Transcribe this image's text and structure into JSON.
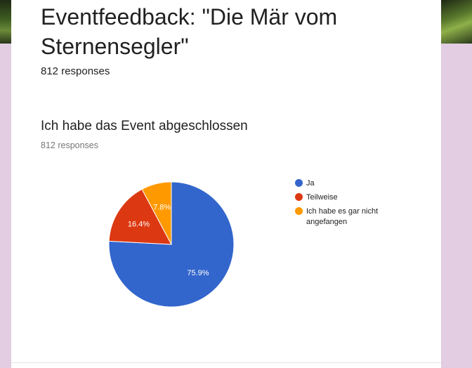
{
  "form": {
    "title": "Eventfeedback: \"Die Mär vom Sternensegler\"",
    "responses": "812 responses"
  },
  "question": {
    "title": "Ich habe das Event abgeschlossen",
    "responses": "812 responses"
  },
  "chart_data": {
    "type": "pie",
    "title": "Ich habe das Event abgeschlossen",
    "categories": [
      "Ja",
      "Teilweise",
      "Ich habe es gar nicht angefangen"
    ],
    "values": [
      75.9,
      16.4,
      7.8
    ],
    "labels": [
      "75.9%",
      "16.4%",
      "7.8%"
    ],
    "colors": [
      "#3366cc",
      "#dc3912",
      "#ff9900"
    ],
    "legend_position": "right"
  }
}
